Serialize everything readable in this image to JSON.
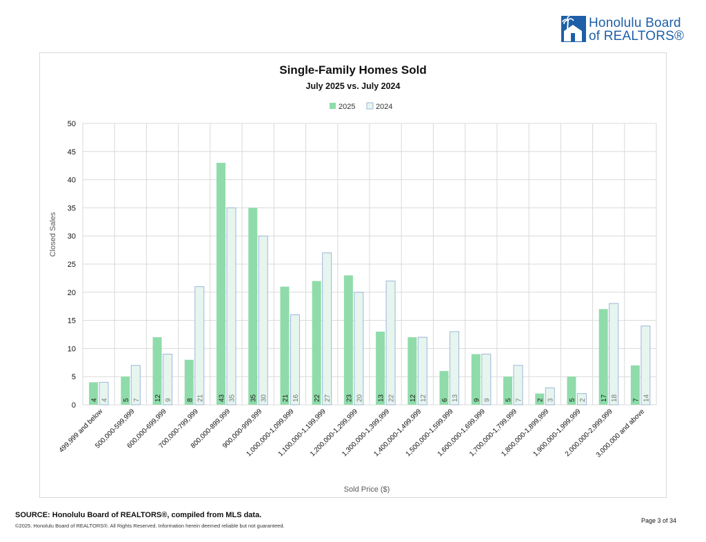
{
  "header": {
    "logo_line1": "Honolulu Board",
    "logo_line2": "of REALTORS®",
    "brand_color": "#1d5fa8"
  },
  "chart_data": {
    "type": "bar",
    "title": "Single-Family Homes Sold",
    "subtitle": "July 2025 vs. July 2024",
    "xlabel": "Sold Price ($)",
    "ylabel": "Closed Sales",
    "ylim": [
      0,
      50
    ],
    "yticks": [
      0,
      5,
      10,
      15,
      20,
      25,
      30,
      35,
      40,
      45,
      50
    ],
    "grid": true,
    "legend_position": "top-center",
    "data_labels": "inside-bottom",
    "categories": [
      "499,999 and below",
      "500,000-599,999",
      "600,000-699,999",
      "700,000-799,999",
      "800,000-899,999",
      "900,000-999,999",
      "1,000,000-1,099,999",
      "1,100,000-1,199,999",
      "1,200,000-1,299,999",
      "1,300,000-1,399,999",
      "1,400,000-1,499,999",
      "1,500,000-1,599,999",
      "1,600,000-1,699,999",
      "1,700,000-1,799,999",
      "1,800,000-1,899,999",
      "1,900,000-1,999,999",
      "2,000,000-2,999,999",
      "3,000,000 and above"
    ],
    "series": [
      {
        "name": "2025",
        "color": "#8fdcaa",
        "values": [
          4,
          5,
          12,
          8,
          43,
          35,
          21,
          22,
          23,
          13,
          12,
          6,
          9,
          5,
          2,
          5,
          17,
          7
        ]
      },
      {
        "name": "2024",
        "color": "#e6f5ee",
        "border": "#9eb6da",
        "values": [
          4,
          7,
          9,
          21,
          35,
          30,
          16,
          27,
          20,
          22,
          12,
          13,
          9,
          7,
          3,
          2,
          18,
          14
        ]
      }
    ]
  },
  "footer": {
    "source": "SOURCE: Honolulu Board of REALTORS®, compiled from MLS data.",
    "copyright": "©2025. Honolulu Board of REALTORS®. All Rights Reserved. Information herein deemed reliable but not guaranteed.",
    "page": "Page 3 of 34"
  }
}
